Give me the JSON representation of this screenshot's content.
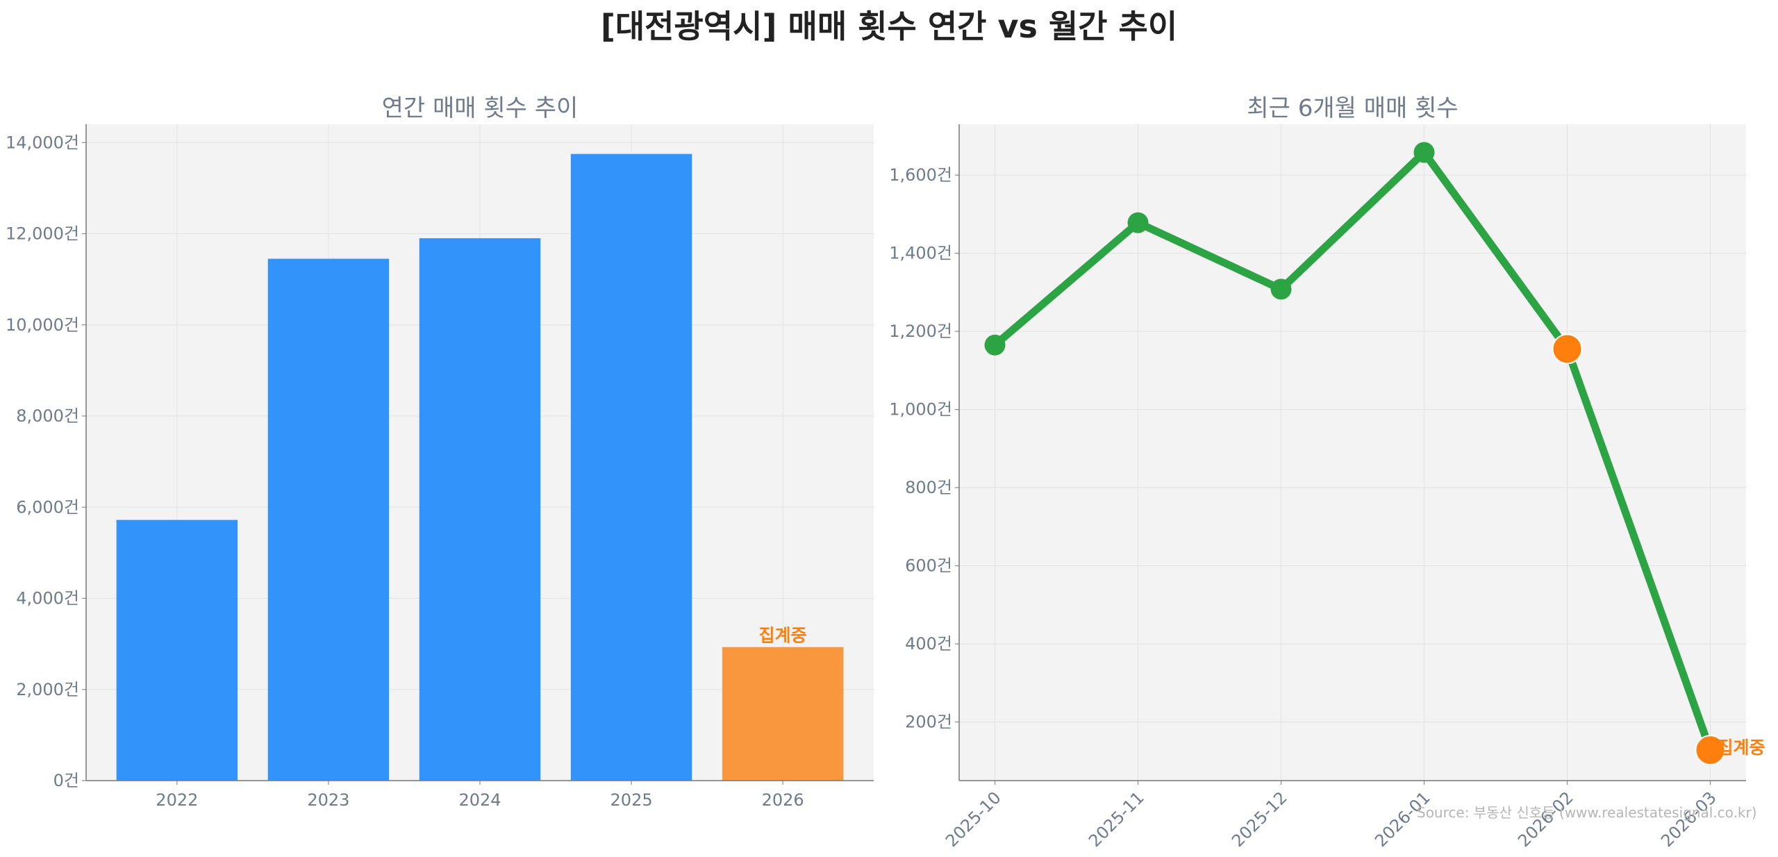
{
  "title": "[대전광역시] 매매 횟수 연간 vs 월간 추이",
  "source": "Source: 부동산 신호등 (www.realestatesignal.co.kr)",
  "colors": {
    "annual_bar": "#3293FB",
    "partial_bar": "#F9973E",
    "line": "#2CA444",
    "highlight": "#FF7F0E",
    "panel_bg": "#F3F3F3",
    "text_muted": "#6E7B8B"
  },
  "chart_data": [
    {
      "type": "bar",
      "title": "연간 매매 횟수 추이",
      "categories": [
        "2022",
        "2023",
        "2024",
        "2025",
        "2026"
      ],
      "values": [
        5720,
        11450,
        11900,
        13750,
        2930
      ],
      "partial_flags": [
        false,
        false,
        false,
        false,
        true
      ],
      "annotation": "집계중",
      "ylim": [
        0,
        14400
      ],
      "yticks": [
        0,
        2000,
        4000,
        6000,
        8000,
        10000,
        12000,
        14000
      ],
      "ytick_labels": [
        "0건",
        "2,000건",
        "4,000건",
        "6,000건",
        "8,000건",
        "10,000건",
        "12,000건",
        "14,000건"
      ],
      "grid": true
    },
    {
      "type": "line",
      "title": "최근 6개월 매매 횟수",
      "categories": [
        "2025-10",
        "2025-11",
        "2025-12",
        "2026-01",
        "2026-02",
        "2026-03"
      ],
      "values": [
        1165,
        1478,
        1308,
        1658,
        1155,
        128
      ],
      "highlight_flags": [
        false,
        false,
        false,
        false,
        true,
        true
      ],
      "annotation": "집계중",
      "ylim": [
        50,
        1730
      ],
      "yticks": [
        200,
        400,
        600,
        800,
        1000,
        1200,
        1400,
        1600
      ],
      "ytick_labels": [
        "200건",
        "400건",
        "600건",
        "800건",
        "1,000건",
        "1,200건",
        "1,400건",
        "1,600건"
      ],
      "grid": true
    }
  ]
}
